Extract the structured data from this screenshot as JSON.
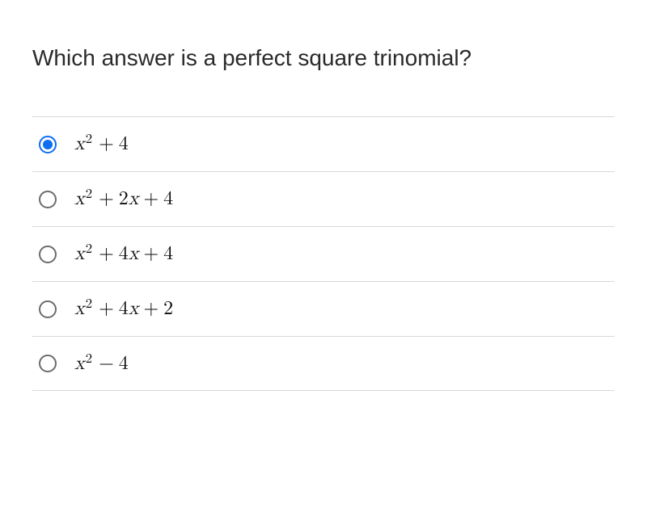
{
  "question": {
    "text": "Which answer is a perfect square trinomial?",
    "fontsize": 28,
    "color": "#2a2a2a"
  },
  "selected_index": 0,
  "radio_selected_color": "#0d6ef0",
  "radio_unselected_color": "#6b6b6b",
  "divider_color": "#d9d9d9",
  "background_color": "#ffffff",
  "math_color": "#0b0b0b",
  "math_fontsize": 24,
  "options": [
    {
      "selected": true,
      "terms": [
        {
          "type": "var",
          "base": "x",
          "exp": "2"
        },
        {
          "type": "op",
          "v": "+"
        },
        {
          "type": "num",
          "v": "4"
        }
      ]
    },
    {
      "selected": false,
      "terms": [
        {
          "type": "var",
          "base": "x",
          "exp": "2"
        },
        {
          "type": "op",
          "v": "+"
        },
        {
          "type": "num",
          "v": "2"
        },
        {
          "type": "var",
          "base": "x"
        },
        {
          "type": "op",
          "v": "+"
        },
        {
          "type": "num",
          "v": "4"
        }
      ]
    },
    {
      "selected": false,
      "terms": [
        {
          "type": "var",
          "base": "x",
          "exp": "2"
        },
        {
          "type": "op",
          "v": "+"
        },
        {
          "type": "num",
          "v": "4"
        },
        {
          "type": "var",
          "base": "x"
        },
        {
          "type": "op",
          "v": "+"
        },
        {
          "type": "num",
          "v": "4"
        }
      ]
    },
    {
      "selected": false,
      "terms": [
        {
          "type": "var",
          "base": "x",
          "exp": "2"
        },
        {
          "type": "op",
          "v": "+"
        },
        {
          "type": "num",
          "v": "4"
        },
        {
          "type": "var",
          "base": "x"
        },
        {
          "type": "op",
          "v": "+"
        },
        {
          "type": "num",
          "v": "2"
        }
      ]
    },
    {
      "selected": false,
      "terms": [
        {
          "type": "var",
          "base": "x",
          "exp": "2"
        },
        {
          "type": "op",
          "v": "−"
        },
        {
          "type": "num",
          "v": "4"
        }
      ]
    }
  ]
}
